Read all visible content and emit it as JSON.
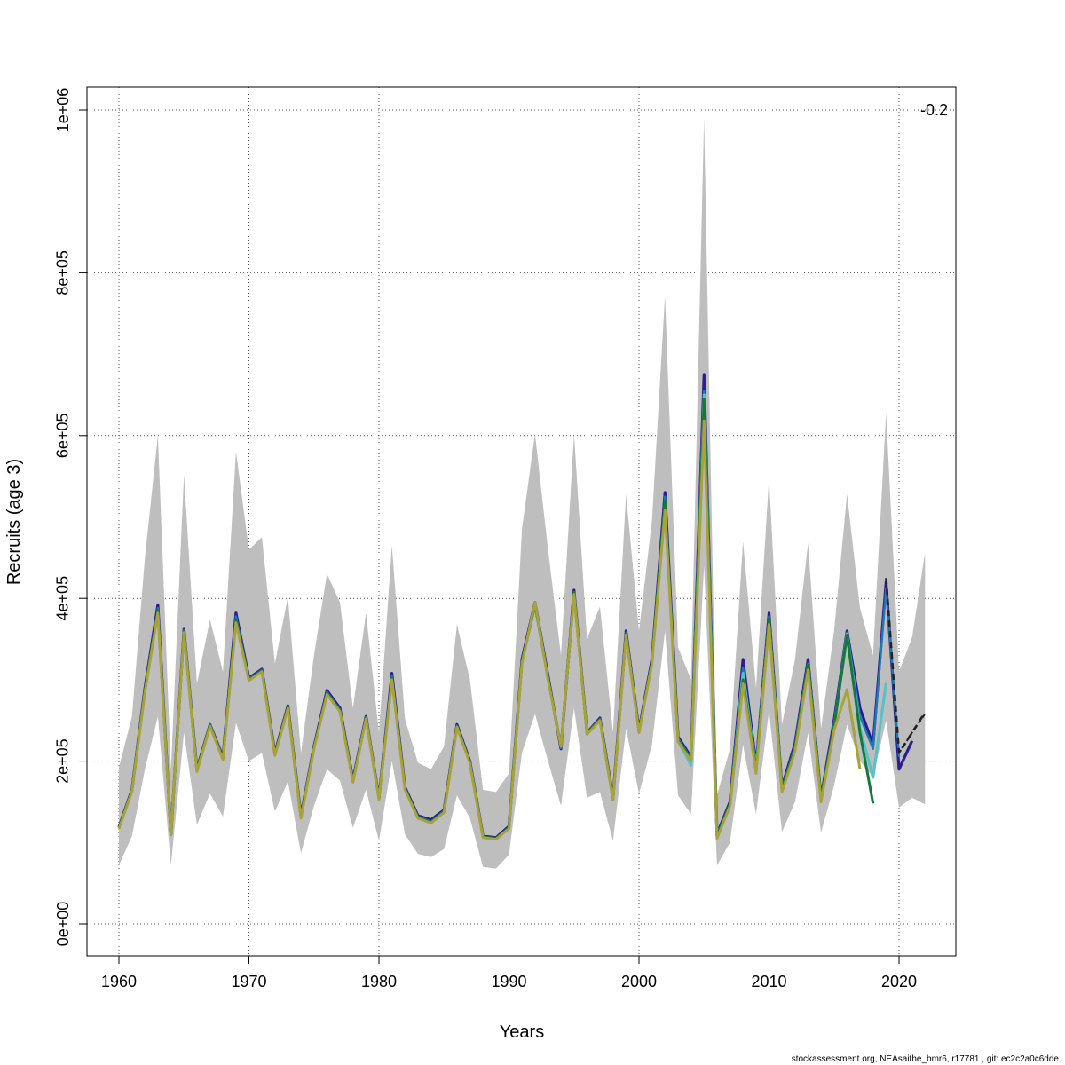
{
  "chart_data": {
    "type": "line",
    "xlabel": "Years",
    "ylabel": "Recruits (age 3)",
    "xlim": [
      1960,
      2022
    ],
    "ylim": [
      0,
      1000000
    ],
    "x_ticks": [
      "1960",
      "1970",
      "1980",
      "1990",
      "2000",
      "2010",
      "2020"
    ],
    "y_ticks": [
      "0e+00",
      "2e+05",
      "4e+05",
      "6e+05",
      "8e+05",
      "1e+06"
    ],
    "grid": true,
    "annotation": "-0.2",
    "footer": "stockassessment.org, NEAsaithe_bmr6, r17781 , git: ec2c2a0c6dde",
    "band": {
      "color": "#bebebe",
      "x": [
        1960,
        1961,
        1962,
        1963,
        1964,
        1965,
        1966,
        1967,
        1968,
        1969,
        1970,
        1971,
        1972,
        1973,
        1974,
        1975,
        1976,
        1977,
        1978,
        1979,
        1980,
        1981,
        1982,
        1983,
        1984,
        1985,
        1986,
        1987,
        1988,
        1989,
        1990,
        1991,
        1992,
        1993,
        1994,
        1995,
        1996,
        1997,
        1998,
        1999,
        2000,
        2001,
        2002,
        2003,
        2004,
        2005,
        2006,
        2007,
        2008,
        2009,
        2010,
        2011,
        2012,
        2013,
        2014,
        2015,
        2016,
        2017,
        2018,
        2019,
        2020,
        2021,
        2022
      ],
      "lower": [
        72000,
        108000,
        190000,
        255000,
        72000,
        235000,
        122000,
        160000,
        132000,
        247000,
        200000,
        210000,
        138000,
        175000,
        87000,
        145000,
        190000,
        176000,
        118000,
        165000,
        102000,
        200000,
        110000,
        86000,
        82000,
        92000,
        158000,
        130000,
        70000,
        68000,
        85000,
        210000,
        258000,
        200000,
        145000,
        265000,
        155000,
        162000,
        102000,
        240000,
        160000,
        220000,
        360000,
        158000,
        135000,
        440000,
        72000,
        100000,
        220000,
        135000,
        262000,
        113000,
        150000,
        235000,
        112000,
        170000,
        245000,
        200000,
        180000,
        250000,
        143000,
        155000,
        147000
      ],
      "upper": [
        192000,
        255000,
        450000,
        600000,
        190000,
        552000,
        295000,
        374000,
        310000,
        580000,
        460000,
        475000,
        320000,
        402000,
        210000,
        330000,
        430000,
        395000,
        265000,
        382000,
        235000,
        465000,
        252000,
        198000,
        190000,
        218000,
        368000,
        300000,
        165000,
        162000,
        185000,
        485000,
        602000,
        460000,
        330000,
        602000,
        350000,
        390000,
        235000,
        528000,
        360000,
        495000,
        772000,
        340000,
        300000,
        990000,
        158000,
        215000,
        470000,
        290000,
        548000,
        245000,
        325000,
        468000,
        240000,
        360000,
        528000,
        388000,
        330000,
        628000,
        310000,
        352000,
        456000
      ]
    },
    "series": [
      {
        "color": "#2b1d8f",
        "width": 3.2,
        "x": [
          1960,
          1961,
          1962,
          1963,
          1964,
          1965,
          1966,
          1967,
          1968,
          1969,
          1970,
          1971,
          1972,
          1973,
          1974,
          1975,
          1976,
          1977,
          1978,
          1979,
          1980,
          1981,
          1982,
          1983,
          1984,
          1985,
          1986,
          1987,
          1988,
          1989,
          1990,
          1991,
          1992,
          1993,
          1994,
          1995,
          1996,
          1997,
          1998,
          1999,
          2000,
          2001,
          2002,
          2003,
          2004,
          2005,
          2006,
          2007,
          2008,
          2009,
          2010,
          2011,
          2012,
          2013,
          2014,
          2015,
          2016,
          2017,
          2018,
          2019,
          2020,
          2021
        ],
        "values": [
          119000,
          165000,
          290000,
          392000,
          110000,
          362000,
          190000,
          245000,
          205000,
          382000,
          302000,
          313000,
          210000,
          268000,
          133000,
          218000,
          287000,
          265000,
          177000,
          255000,
          155000,
          308000,
          168000,
          133000,
          128000,
          140000,
          245000,
          200000,
          108000,
          106000,
          120000,
          325000,
          395000,
          305000,
          215000,
          410000,
          235000,
          253000,
          155000,
          360000,
          238000,
          325000,
          530000,
          230000,
          205000,
          675000,
          110000,
          150000,
          325000,
          195000,
          382000,
          168000,
          222000,
          325000,
          155000,
          250000,
          360000,
          265000,
          220000,
          420000,
          190000,
          225000
        ]
      },
      {
        "color": "#1f78b4",
        "width": 2.4,
        "x": [
          1960,
          1961,
          1962,
          1963,
          1964,
          1965,
          1966,
          1967,
          1968,
          1969,
          1970,
          1971,
          1972,
          1973,
          1974,
          1975,
          1976,
          1977,
          1978,
          1979,
          1980,
          1981,
          1982,
          1983,
          1984,
          1985,
          1986,
          1987,
          1988,
          1989,
          1990,
          1991,
          1992,
          1993,
          1994,
          1995,
          1996,
          1997,
          1998,
          1999,
          2000,
          2001,
          2002,
          2003,
          2004,
          2005,
          2006,
          2007,
          2008,
          2009,
          2010,
          2011,
          2012,
          2013,
          2014,
          2015,
          2016,
          2017,
          2018,
          2019,
          2020
        ],
        "values": [
          118000,
          164000,
          288000,
          388000,
          110000,
          361000,
          189000,
          245000,
          204000,
          378000,
          301000,
          312000,
          209000,
          267000,
          132000,
          217000,
          285000,
          263000,
          176000,
          254000,
          155000,
          305000,
          167000,
          132000,
          126000,
          139000,
          244000,
          199000,
          107000,
          105000,
          119000,
          323000,
          393000,
          303000,
          216000,
          408000,
          235000,
          252000,
          154000,
          358000,
          237000,
          323000,
          525000,
          228000,
          203000,
          655000,
          109000,
          148000,
          315000,
          192000,
          378000,
          166000,
          218000,
          320000,
          153000,
          245000,
          358000,
          255000,
          215000,
          412000,
          205000
        ]
      },
      {
        "color": "#5bc0c8",
        "width": 3.2,
        "x": [
          2003,
          2004,
          2005,
          2006,
          2007,
          2008,
          2009,
          2010,
          2011,
          2012,
          2013,
          2014,
          2015,
          2016,
          2017,
          2018,
          2019
        ],
        "values": [
          225000,
          195000,
          650000,
          108000,
          145000,
          308000,
          190000,
          372000,
          165000,
          215000,
          318000,
          152000,
          242000,
          356000,
          240000,
          180000,
          296000
        ]
      },
      {
        "color": "#137a3a",
        "width": 3,
        "x": [
          1960,
          1961,
          1962,
          1963,
          1964,
          1965,
          1966,
          1967,
          1968,
          1969,
          1970,
          1971,
          1972,
          1973,
          1974,
          1975,
          1976,
          1977,
          1978,
          1979,
          1980,
          1981,
          1982,
          1983,
          1984,
          1985,
          1986,
          1987,
          1988,
          1989,
          1990,
          1991,
          1992,
          1993,
          1994,
          1995,
          1996,
          1997,
          1998,
          1999,
          2000,
          2001,
          2002,
          2003,
          2004,
          2005,
          2006,
          2007,
          2008,
          2009,
          2010,
          2011,
          2012,
          2013,
          2014,
          2015,
          2016,
          2017,
          2018
        ],
        "values": [
          118000,
          164000,
          287000,
          385000,
          110000,
          360000,
          188000,
          244000,
          203000,
          373000,
          300000,
          311000,
          208000,
          266000,
          131000,
          216000,
          283000,
          262000,
          175000,
          253000,
          154000,
          302000,
          166000,
          131000,
          125000,
          138000,
          243000,
          198000,
          107000,
          105000,
          118000,
          322000,
          392000,
          302000,
          218000,
          407000,
          234000,
          251000,
          153000,
          356000,
          236000,
          322000,
          520000,
          226000,
          201000,
          645000,
          108000,
          147000,
          300000,
          188000,
          375000,
          165000,
          215000,
          318000,
          155000,
          242000,
          355000,
          235000,
          148000
        ]
      },
      {
        "color": "#a8a23a",
        "width": 3,
        "x": [
          1960,
          1961,
          1962,
          1963,
          1964,
          1965,
          1966,
          1967,
          1968,
          1969,
          1970,
          1971,
          1972,
          1973,
          1974,
          1975,
          1976,
          1977,
          1978,
          1979,
          1980,
          1981,
          1982,
          1983,
          1984,
          1985,
          1986,
          1987,
          1988,
          1989,
          1990,
          1991,
          1992,
          1993,
          1994,
          1995,
          1996,
          1997,
          1998,
          1999,
          2000,
          2001,
          2002,
          2003,
          2004,
          2005,
          2006,
          2007,
          2008,
          2009,
          2010,
          2011,
          2012,
          2013,
          2014,
          2015,
          2016,
          2017
        ],
        "values": [
          117000,
          163000,
          285000,
          382000,
          110000,
          358000,
          187000,
          243000,
          202000,
          370000,
          299000,
          310000,
          207000,
          265000,
          130000,
          215000,
          282000,
          261000,
          174000,
          252000,
          153000,
          300000,
          165000,
          130000,
          124000,
          137000,
          242000,
          197000,
          106000,
          104000,
          117000,
          320000,
          395000,
          300000,
          218000,
          405000,
          233000,
          250000,
          152000,
          355000,
          235000,
          320000,
          508000,
          224000,
          200000,
          618000,
          105000,
          145000,
          295000,
          185000,
          368000,
          162000,
          212000,
          312000,
          150000,
          238000,
          288000,
          190000
        ]
      },
      {
        "color": "#222222",
        "width": 2.6,
        "dash": "7,5",
        "x": [
          2019,
          2020,
          2022
        ],
        "values": [
          425000,
          210000,
          260000
        ]
      },
      {
        "color": "#222222",
        "width": 2,
        "dash": "4,4",
        "x": [
          2020,
          2021,
          2022
        ],
        "values": [
          210000,
          235000,
          258000
        ]
      }
    ]
  }
}
